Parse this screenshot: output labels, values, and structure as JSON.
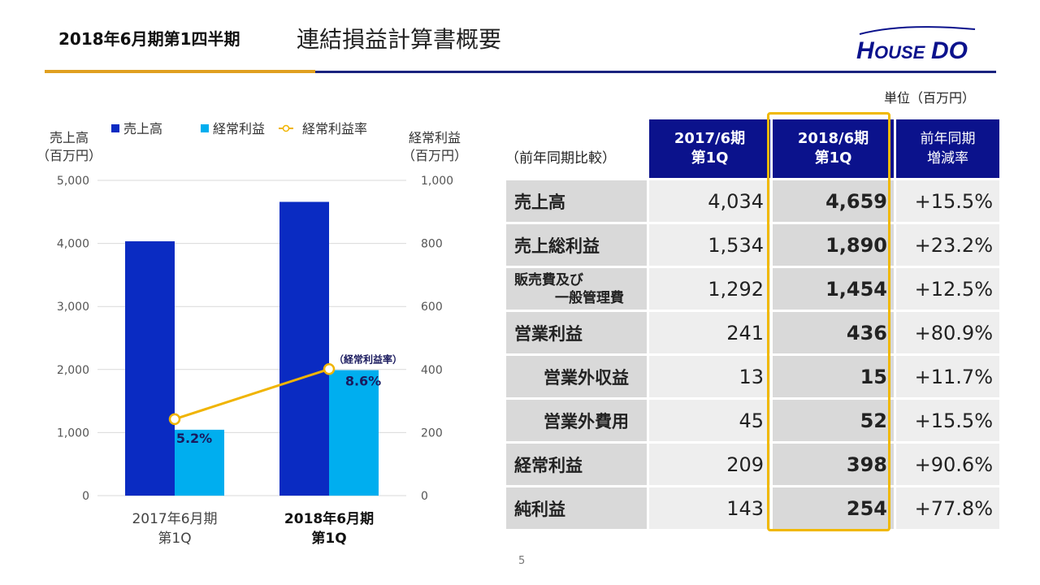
{
  "header": {
    "period": "2018年6月期第1四半期",
    "title": "連結損益計算書概要",
    "logo_text": "HOUSEDO"
  },
  "unit_label": "単位（百万円）",
  "chart_data": {
    "type": "bar",
    "legend": [
      "売上高",
      "経常利益",
      "経常利益率"
    ],
    "left_axis_title": [
      "売上高",
      "（百万円）"
    ],
    "right_axis_title": [
      "経常利益",
      "（百万円）"
    ],
    "left_ticks": [
      "5,000",
      "4,000",
      "3,000",
      "2,000",
      "1,000",
      "0"
    ],
    "right_ticks": [
      "1,000",
      "800",
      "600",
      "400",
      "200",
      "0"
    ],
    "ylim_left": [
      0,
      5000
    ],
    "ylim_right": [
      0,
      1000
    ],
    "categories": [
      [
        "2017年6月期",
        "第1Q"
      ],
      [
        "2018年6月期",
        "第1Q"
      ]
    ],
    "series": [
      {
        "name": "売上高",
        "axis": "left",
        "values": [
          4034,
          4659
        ],
        "color": "#0a2bc2"
      },
      {
        "name": "経常利益",
        "axis": "right",
        "values": [
          209,
          398
        ],
        "color": "#00aeef"
      },
      {
        "name": "経常利益率",
        "type": "line",
        "values": [
          5.2,
          8.6
        ],
        "labels": [
          "5.2%",
          "8.6%"
        ],
        "color": "#f0b400"
      }
    ],
    "annotation": "（経常利益率）",
    "grid": true
  },
  "table": {
    "caption": "（前年同期比較）",
    "headers": [
      [
        "2017/6期",
        "第1Q"
      ],
      [
        "2018/6期",
        "第1Q"
      ],
      [
        "前年同期",
        "増減率"
      ]
    ],
    "rows": [
      {
        "label": "売上高",
        "prev": "4,034",
        "cur": "4,659",
        "change": "+15.5%"
      },
      {
        "label": "売上総利益",
        "prev": "1,534",
        "cur": "1,890",
        "change": "+23.2%"
      },
      {
        "label_lines": [
          "販売費及び",
          "一般管理費"
        ],
        "prev": "1,292",
        "cur": "1,454",
        "change": "+12.5%"
      },
      {
        "label": "営業利益",
        "prev": "241",
        "cur": "436",
        "change": "+80.9%"
      },
      {
        "label": "営業外収益",
        "prev": "13",
        "cur": "15",
        "change": "+11.7%"
      },
      {
        "label": "営業外費用",
        "prev": "45",
        "cur": "52",
        "change": "+15.5%"
      },
      {
        "label": "経常利益",
        "prev": "209",
        "cur": "398",
        "change": "+90.6%"
      },
      {
        "label": "純利益",
        "prev": "143",
        "cur": "254",
        "change": "+77.8%"
      }
    ]
  },
  "page_number": "5"
}
